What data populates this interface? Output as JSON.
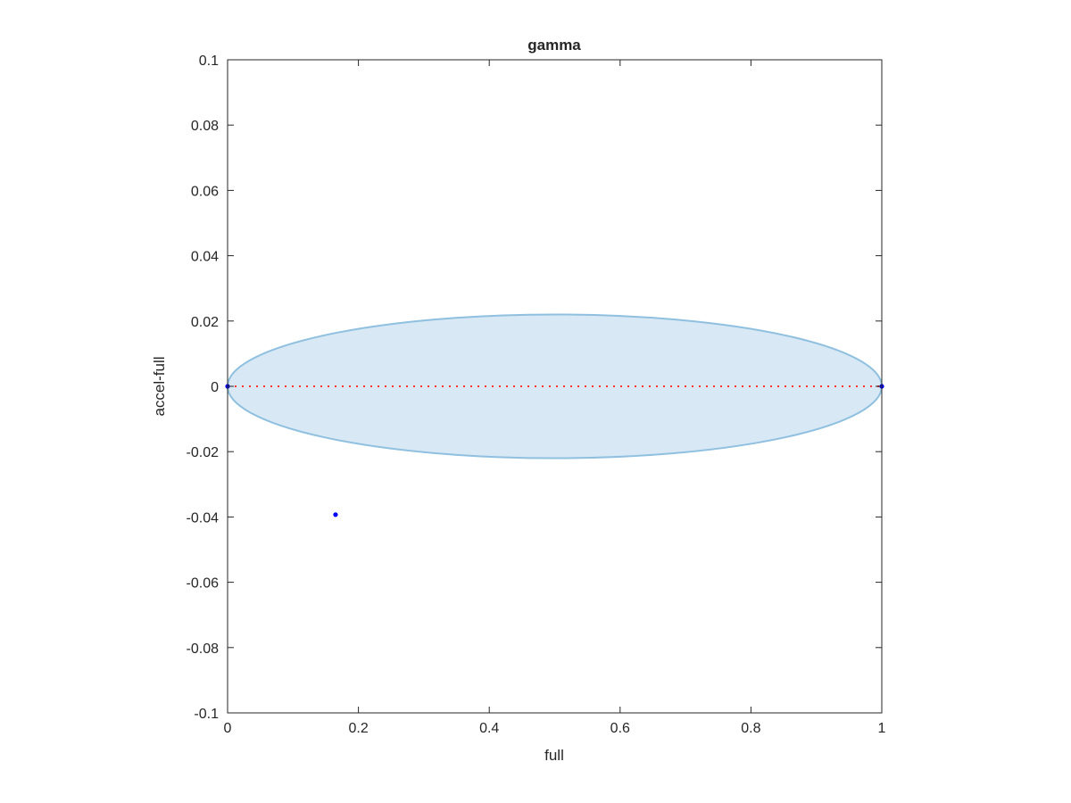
{
  "chart_data": {
    "type": "scatter",
    "title": "gamma",
    "xlabel": "full",
    "ylabel": "accel-full",
    "xlim": [
      0,
      1
    ],
    "ylim": [
      -0.1,
      0.1
    ],
    "xticks": [
      "0",
      "0.2",
      "0.4",
      "0.6",
      "0.8",
      "1"
    ],
    "xtick_values": [
      0,
      0.2,
      0.4,
      0.6,
      0.8,
      1
    ],
    "yticks": [
      "0.1",
      "0.08",
      "0.06",
      "0.04",
      "0.02",
      "0",
      "-0.02",
      "-0.04",
      "-0.06",
      "-0.08",
      "-0.1"
    ],
    "ytick_values": [
      0.1,
      0.08,
      0.06,
      0.04,
      0.02,
      0,
      -0.02,
      -0.04,
      -0.06,
      -0.08,
      -0.1
    ],
    "grid": false,
    "ellipse": {
      "center": [
        0.5,
        0
      ],
      "semi_axes": [
        0.5,
        0.022
      ],
      "fill": "#d8e8f4",
      "edge": "#8fc0e0"
    },
    "reference_line": {
      "x": [
        0,
        1
      ],
      "y": [
        0,
        0
      ],
      "style": "dotted",
      "color": "#ff3030"
    },
    "points": {
      "x": [
        0,
        1,
        0.165
      ],
      "y": [
        0,
        0,
        -0.0393
      ],
      "color": "#0000ff"
    }
  }
}
